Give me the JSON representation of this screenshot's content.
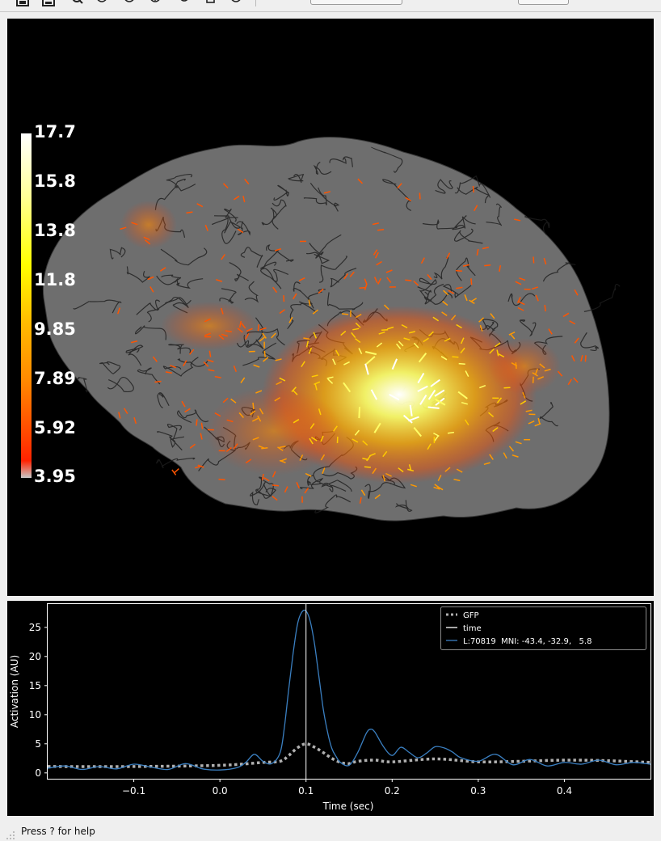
{
  "toolbar": {
    "icons": [
      "screenshot-icon",
      "save-icon",
      "zoom-icon",
      "play-icon",
      "reset-icon",
      "help-icon",
      "undo-icon",
      "mobile-icon",
      "info-icon"
    ],
    "combo_primary": "",
    "combo_secondary": ""
  },
  "brain_view": {
    "colorbar": {
      "tick_labels": [
        "17.7",
        "15.8",
        "13.8",
        "11.8",
        "9.85",
        "7.89",
        "5.92",
        "3.95"
      ],
      "max": 17.7,
      "min": 3.95,
      "colormap": [
        "#ffffff",
        "#ffff80",
        "#ffff00",
        "#ffcc00",
        "#ff9900",
        "#ff6600",
        "#ff3300",
        "#c8c8c8"
      ]
    }
  },
  "chart_data": {
    "type": "line",
    "xlabel": "Time (sec)",
    "ylabel": "Activation (AU)",
    "xlim": [
      -0.2,
      0.5
    ],
    "ylim": [
      -1,
      29
    ],
    "xticks": [
      -0.1,
      0.0,
      0.1,
      0.2,
      0.3,
      0.4
    ],
    "xtick_labels": [
      "−0.1",
      "0.0",
      "0.1",
      "0.2",
      "0.3",
      "0.4"
    ],
    "yticks": [
      0,
      5,
      10,
      15,
      20,
      25
    ],
    "ytick_labels": [
      "0",
      "5",
      "10",
      "15",
      "20",
      "25"
    ],
    "legend_placement": "top-right",
    "time_marker": 0.1,
    "series": [
      {
        "name": "GFP",
        "color": "#b0b0b0",
        "style": "dotted",
        "x": [
          -0.2,
          -0.1,
          0.0,
          0.05,
          0.07,
          0.08,
          0.09,
          0.1,
          0.11,
          0.12,
          0.13,
          0.14,
          0.15,
          0.16,
          0.18,
          0.2,
          0.25,
          0.3,
          0.35,
          0.4,
          0.45,
          0.5
        ],
        "y": [
          1.1,
          1.1,
          1.3,
          1.8,
          2.0,
          3.0,
          4.3,
          5.0,
          4.4,
          3.5,
          2.5,
          1.8,
          1.6,
          2.0,
          2.2,
          1.9,
          2.4,
          1.9,
          2.0,
          2.2,
          2.1,
          1.8
        ]
      },
      {
        "name": "time",
        "color": "#ffffff",
        "style": "solid"
      },
      {
        "name": "L:70819  MNI: -43.4, -32.9,   5.8",
        "color": "#3a7fc1",
        "style": "solid",
        "x": [
          -0.2,
          -0.18,
          -0.16,
          -0.14,
          -0.12,
          -0.1,
          -0.08,
          -0.06,
          -0.04,
          -0.02,
          0.0,
          0.02,
          0.03,
          0.04,
          0.05,
          0.06,
          0.07,
          0.075,
          0.08,
          0.085,
          0.09,
          0.095,
          0.1,
          0.105,
          0.11,
          0.115,
          0.12,
          0.125,
          0.13,
          0.135,
          0.14,
          0.15,
          0.16,
          0.17,
          0.175,
          0.18,
          0.19,
          0.2,
          0.21,
          0.22,
          0.23,
          0.24,
          0.25,
          0.26,
          0.27,
          0.28,
          0.3,
          0.32,
          0.34,
          0.36,
          0.38,
          0.4,
          0.42,
          0.44,
          0.46,
          0.48,
          0.5
        ],
        "y": [
          0.8,
          1.2,
          0.6,
          1.1,
          0.7,
          1.5,
          1.0,
          0.6,
          1.6,
          0.7,
          0.5,
          0.9,
          1.8,
          3.2,
          2.0,
          1.6,
          3.5,
          8.0,
          14.5,
          20.5,
          25.5,
          27.6,
          27.8,
          26.0,
          22.0,
          16.5,
          11.0,
          7.0,
          4.2,
          2.8,
          1.8,
          1.3,
          3.5,
          6.8,
          7.5,
          7.0,
          4.5,
          3.0,
          4.4,
          3.5,
          2.6,
          3.4,
          4.5,
          4.3,
          3.6,
          2.6,
          2.0,
          3.2,
          1.4,
          2.3,
          1.2,
          1.8,
          1.5,
          2.2,
          1.4,
          1.8,
          1.5
        ]
      }
    ]
  },
  "status_bar": {
    "text": "Press ? for help"
  }
}
